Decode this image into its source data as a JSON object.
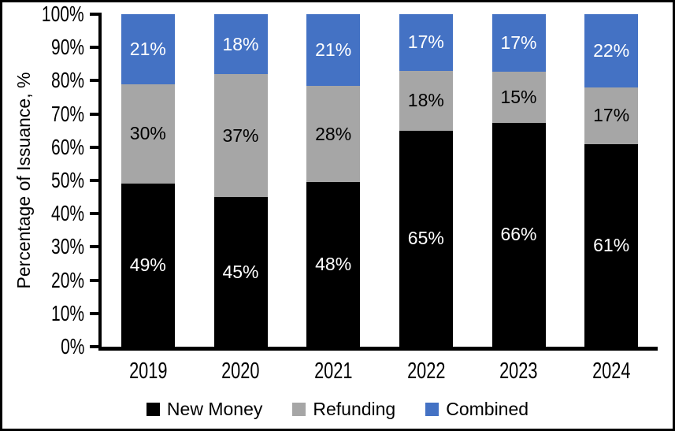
{
  "chart_data": {
    "type": "bar",
    "stacked": true,
    "categories": [
      "2019",
      "2020",
      "2021",
      "2022",
      "2023",
      "2024"
    ],
    "series": [
      {
        "name": "New Money",
        "color": "#000000",
        "label_color": "#ffffff",
        "values": [
          49,
          45,
          48,
          65,
          66,
          61
        ]
      },
      {
        "name": "Refunding",
        "color": "#A6A6A6",
        "label_color": "#000000",
        "values": [
          30,
          37,
          28,
          18,
          15,
          17
        ]
      },
      {
        "name": "Combined",
        "color": "#4472C4",
        "label_color": "#ffffff",
        "values": [
          21,
          18,
          21,
          17,
          17,
          22
        ]
      }
    ],
    "ylabel": "Percentage of Issuance, %",
    "ylim": [
      0,
      100
    ],
    "y_tick_labels": [
      "0%",
      "10%",
      "20%",
      "30%",
      "40%",
      "50%",
      "60%",
      "70%",
      "80%",
      "90%",
      "100%"
    ],
    "value_suffix": "%",
    "legend_position": "bottom",
    "grid": false,
    "axis_color": "#000000",
    "background_color": "#ffffff"
  }
}
